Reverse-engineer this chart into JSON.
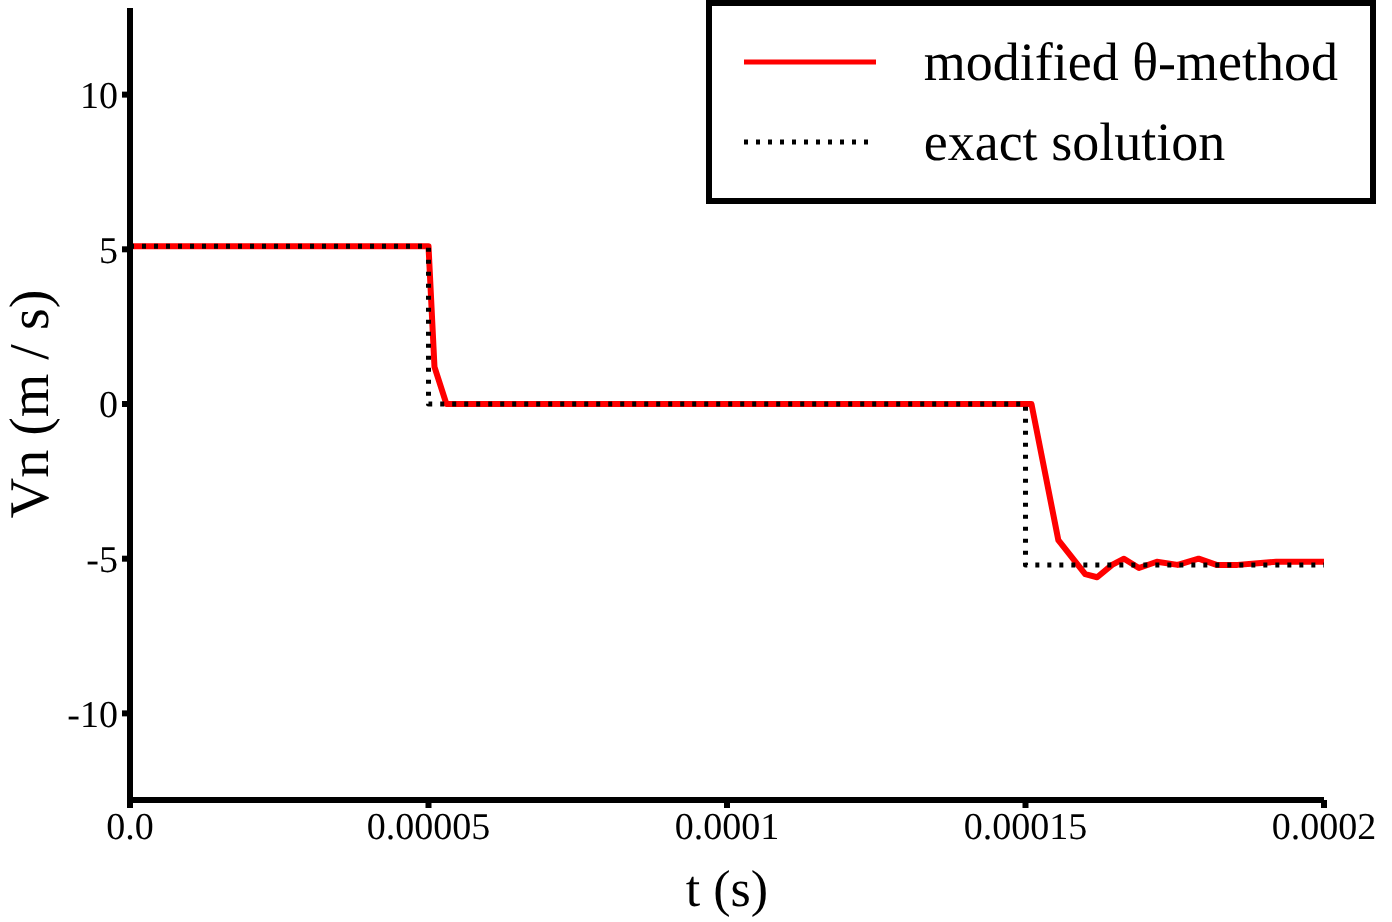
{
  "chart_data": {
    "type": "line",
    "xlabel": "t (s)",
    "ylabel": "Vn (m / s)",
    "xlim": [
      0,
      0.0002
    ],
    "xticks": [
      {
        "value": 0,
        "label": "0.0"
      },
      {
        "value": 5e-05,
        "label": "0.00005"
      },
      0.0001,
      0.00015,
      0.0002
    ],
    "ylim": [
      -12.8,
      12.8
    ],
    "yticks": [
      -10,
      -5,
      0,
      5,
      10
    ],
    "grid": false,
    "legend": "top right",
    "series": [
      {
        "name": "modified θ-method",
        "color": "#ff0000",
        "line_style": "solid",
        "x": [
          0,
          5e-05,
          5.1e-05,
          5.3e-05,
          0.000151,
          0.0001555,
          0.00016,
          0.000162,
          0.0001645,
          0.0001665,
          0.000169,
          0.000172,
          0.0001755,
          0.000179,
          0.000182,
          0.0001855,
          0.000192,
          0.0002
        ],
        "values": [
          5.1,
          5.1,
          1.2,
          0,
          0,
          -4.4,
          -5.5,
          -5.6,
          -5.2,
          -5.0,
          -5.3,
          -5.1,
          -5.2,
          -5.0,
          -5.2,
          -5.2,
          -5.1,
          -5.1
        ]
      },
      {
        "name": "exact solution",
        "color": "#000000",
        "line_style": "dotted",
        "x": [
          0,
          5e-05,
          5e-05,
          0.00015,
          0.00015,
          0.0002
        ],
        "values": [
          5.1,
          5.1,
          0,
          0,
          -5.2,
          -5.2
        ]
      }
    ]
  }
}
